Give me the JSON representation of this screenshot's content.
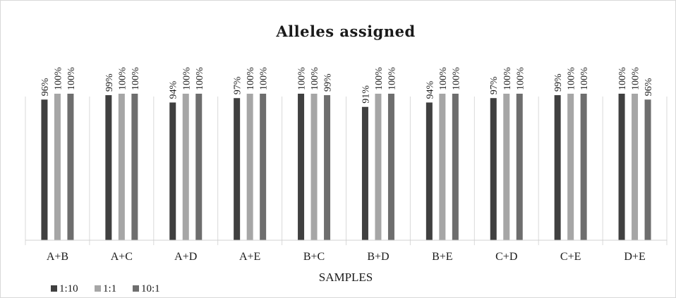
{
  "chart_data": {
    "type": "bar",
    "title": "Alleles assigned",
    "xlabel": "SAMPLES",
    "ylabel": "",
    "ylim": [
      0,
      100
    ],
    "grid": false,
    "legend_position": "bottom-left",
    "categories": [
      "A+B",
      "A+C",
      "A+D",
      "A+E",
      "B+C",
      "B+D",
      "B+E",
      "C+D",
      "C+E",
      "D+E"
    ],
    "series": [
      {
        "name": "1:10",
        "color": "#404040",
        "values": [
          96,
          99,
          94,
          97,
          100,
          91,
          94,
          97,
          99,
          100
        ],
        "labels": [
          "96%",
          "99%",
          "94%",
          "97%",
          "100%",
          "91%",
          "94%",
          "97%",
          "99%",
          "100%"
        ]
      },
      {
        "name": "1:1",
        "color": "#a6a6a6",
        "values": [
          100,
          100,
          100,
          100,
          100,
          100,
          100,
          100,
          100,
          100
        ],
        "labels": [
          "100%",
          "100%",
          "100%",
          "100%",
          "100%",
          "100%",
          "100%",
          "100%",
          "100%",
          "100%"
        ]
      },
      {
        "name": "10:1",
        "color": "#6e6e6e",
        "values": [
          100,
          100,
          100,
          100,
          99,
          100,
          100,
          100,
          100,
          96
        ],
        "labels": [
          "100%",
          "100%",
          "100%",
          "100%",
          "99%",
          "100%",
          "100%",
          "100%",
          "100%",
          "96%"
        ]
      }
    ]
  }
}
